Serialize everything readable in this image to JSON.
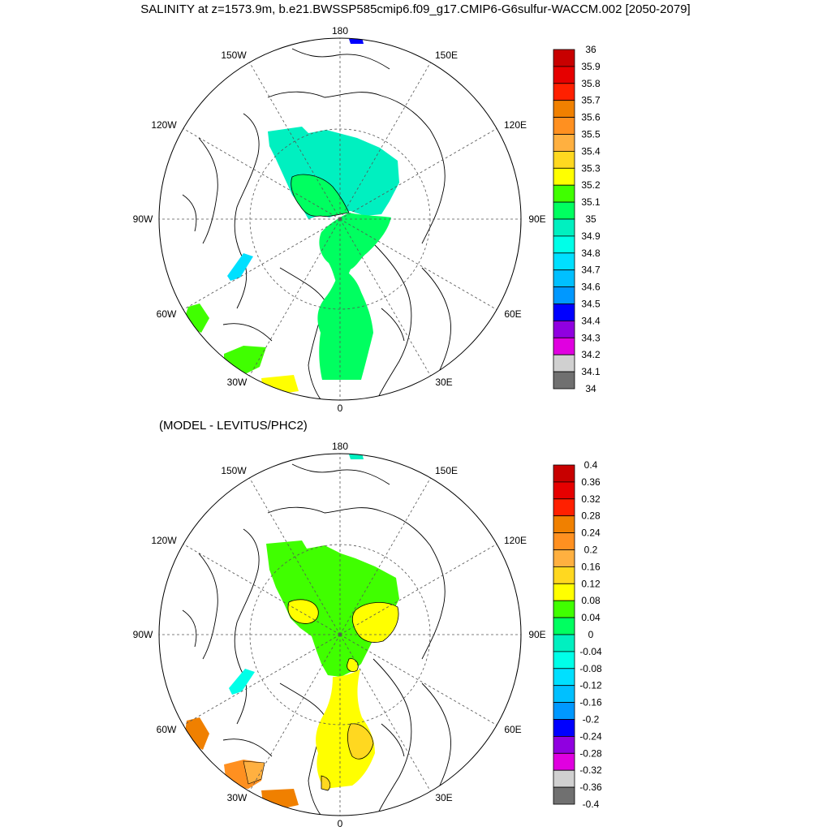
{
  "title": "SALINITY at z=1573.9m, b.e21.BWSSP585cmip6.f09_g17.CMIP6-G6sulfur-WACCM.002 [2050-2079]",
  "subtitle": "(MODEL - LEVITUS/PHC2)",
  "meridian_labels": [
    "180",
    "150E",
    "120E",
    "90E",
    "60E",
    "30E",
    "0",
    "30W",
    "60W",
    "90W",
    "120W",
    "150W"
  ],
  "panels": [
    {
      "name": "salinity",
      "colorbar": {
        "labels": [
          "36",
          "35.9",
          "35.8",
          "35.7",
          "35.6",
          "35.5",
          "35.4",
          "35.3",
          "35.2",
          "35.1",
          "35",
          "34.9",
          "34.8",
          "34.7",
          "34.6",
          "34.5",
          "34.4",
          "34.3",
          "34.2",
          "34.1",
          "34"
        ],
        "colors": [
          "#c80000",
          "#e60000",
          "#ff2000",
          "#f08000",
          "#ff9020",
          "#ffb040",
          "#ffd820",
          "#ffff00",
          "#40ff00",
          "#00ff60",
          "#00f0c0",
          "#00ffe8",
          "#00e0ff",
          "#00c0ff",
          "#0098ff",
          "#0000ff",
          "#9000e0",
          "#e000e0",
          "#d0d0d0",
          "#707070"
        ]
      }
    },
    {
      "name": "difference",
      "colorbar": {
        "labels": [
          "0.4",
          "0.36",
          "0.32",
          "0.28",
          "0.24",
          "0.2",
          "0.16",
          "0.12",
          "0.08",
          "0.04",
          "0",
          "-0.04",
          "-0.08",
          "-0.12",
          "-0.16",
          "-0.2",
          "-0.24",
          "-0.28",
          "-0.32",
          "-0.36",
          "-0.4"
        ],
        "colors": [
          "#c80000",
          "#e60000",
          "#ff2000",
          "#f08000",
          "#ff9020",
          "#ffb040",
          "#ffd820",
          "#ffff00",
          "#40ff00",
          "#00ff60",
          "#00f0c0",
          "#00ffe8",
          "#00e0ff",
          "#00c0ff",
          "#0098ff",
          "#0000ff",
          "#9000e0",
          "#e000e0",
          "#d0d0d0",
          "#707070"
        ]
      }
    }
  ]
}
